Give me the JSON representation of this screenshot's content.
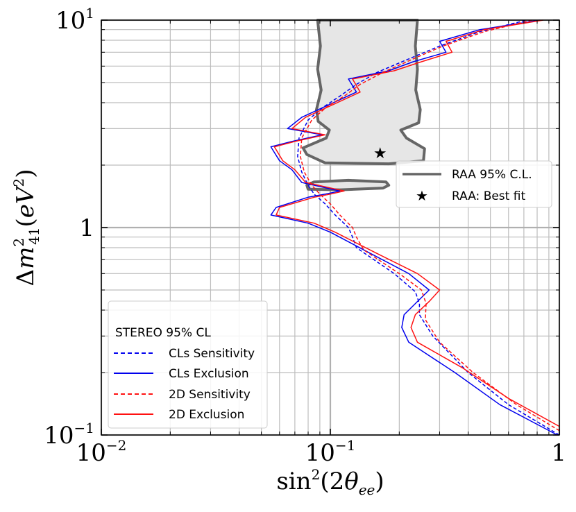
{
  "chart_data": {
    "type": "line",
    "title": "",
    "xscale": "log",
    "yscale": "log",
    "xlim": [
      0.01,
      1
    ],
    "ylim": [
      0.1,
      10
    ],
    "xlabel": {
      "base": "sin",
      "sup": "2",
      "open": "(2",
      "theta": "θ",
      "sub": "ee",
      "close": ")"
    },
    "ylabel": {
      "delta": "Δ",
      "m": "m",
      "sup": "2",
      "sub": "41",
      "open": "(",
      "unit": "eV",
      "unitsup": "2",
      "close": ")"
    },
    "x_ticks": [
      {
        "value": 0.01,
        "base": "10",
        "exp": "−2"
      },
      {
        "value": 0.1,
        "base": "10",
        "exp": "−1"
      },
      {
        "value": 1,
        "base": "1",
        "exp": ""
      }
    ],
    "y_ticks": [
      {
        "value": 0.1,
        "base": "10",
        "exp": "−1"
      },
      {
        "value": 1,
        "base": "1",
        "exp": ""
      },
      {
        "value": 10,
        "base": "10",
        "exp": "1"
      }
    ],
    "grid": true,
    "raa_region": {
      "name": "RAA 95% C.L.",
      "color": "#666666",
      "fill": "#e6e6e6",
      "main": [
        [
          0.088,
          10
        ],
        [
          0.0905,
          7.5
        ],
        [
          0.088,
          5.8
        ],
        [
          0.0912,
          4.6
        ],
        [
          0.087,
          3.7
        ],
        [
          0.0885,
          3.25
        ],
        [
          0.099,
          2.95
        ],
        [
          0.096,
          2.7
        ],
        [
          0.076,
          2.42
        ],
        [
          0.079,
          2.25
        ],
        [
          0.095,
          2.05
        ],
        [
          0.18,
          2.03
        ],
        [
          0.255,
          2.1
        ],
        [
          0.258,
          2.4
        ],
        [
          0.215,
          2.7
        ],
        [
          0.203,
          2.95
        ],
        [
          0.243,
          3.2
        ],
        [
          0.247,
          3.7
        ],
        [
          0.236,
          4.6
        ],
        [
          0.24,
          5.8
        ],
        [
          0.235,
          7.5
        ],
        [
          0.24,
          10
        ]
      ],
      "island": [
        [
          0.079,
          1.6
        ],
        [
          0.085,
          1.66
        ],
        [
          0.12,
          1.69
        ],
        [
          0.175,
          1.66
        ],
        [
          0.18,
          1.6
        ],
        [
          0.17,
          1.55
        ],
        [
          0.11,
          1.52
        ],
        [
          0.08,
          1.53
        ]
      ]
    },
    "best_fit": {
      "name": "RAA: Best fit",
      "x": 0.165,
      "y": 2.3
    },
    "series": [
      {
        "name": "CLs Sensitivity",
        "color": "#0000ee",
        "style": "dashed",
        "points": [
          [
            1.0,
            0.1
          ],
          [
            0.6,
            0.14
          ],
          [
            0.4,
            0.2
          ],
          [
            0.28,
            0.3
          ],
          [
            0.245,
            0.38
          ],
          [
            0.245,
            0.43
          ],
          [
            0.235,
            0.49
          ],
          [
            0.19,
            0.6
          ],
          [
            0.13,
            0.8
          ],
          [
            0.125,
            0.9
          ],
          [
            0.12,
            1.0
          ],
          [
            0.105,
            1.15
          ],
          [
            0.095,
            1.3
          ],
          [
            0.085,
            1.45
          ],
          [
            0.08,
            1.6
          ],
          [
            0.075,
            1.85
          ],
          [
            0.072,
            2.2
          ],
          [
            0.073,
            2.7
          ],
          [
            0.08,
            3.3
          ],
          [
            0.093,
            3.8
          ],
          [
            0.11,
            4.3
          ],
          [
            0.13,
            4.9
          ],
          [
            0.16,
            5.6
          ],
          [
            0.22,
            6.5
          ],
          [
            0.3,
            7.5
          ],
          [
            0.45,
            8.8
          ],
          [
            0.72,
            10
          ]
        ]
      },
      {
        "name": "CLs Exclusion",
        "color": "#0000ee",
        "style": "solid",
        "points": [
          [
            0.98,
            0.1
          ],
          [
            0.55,
            0.14
          ],
          [
            0.35,
            0.2
          ],
          [
            0.22,
            0.28
          ],
          [
            0.205,
            0.33
          ],
          [
            0.21,
            0.38
          ],
          [
            0.24,
            0.44
          ],
          [
            0.27,
            0.5
          ],
          [
            0.22,
            0.6
          ],
          [
            0.15,
            0.75
          ],
          [
            0.1,
            0.95
          ],
          [
            0.08,
            1.05
          ],
          [
            0.055,
            1.15
          ],
          [
            0.058,
            1.25
          ],
          [
            0.08,
            1.4
          ],
          [
            0.095,
            1.45
          ],
          [
            0.11,
            1.5
          ],
          [
            0.075,
            1.65
          ],
          [
            0.068,
            1.9
          ],
          [
            0.06,
            2.1
          ],
          [
            0.055,
            2.45
          ],
          [
            0.068,
            2.6
          ],
          [
            0.092,
            2.8
          ],
          [
            0.065,
            3.0
          ],
          [
            0.075,
            3.4
          ],
          [
            0.13,
            4.5
          ],
          [
            0.12,
            5.2
          ],
          [
            0.18,
            5.7
          ],
          [
            0.23,
            6.3
          ],
          [
            0.32,
            7.0
          ],
          [
            0.3,
            7.9
          ],
          [
            0.45,
            9.0
          ],
          [
            0.82,
            10
          ]
        ]
      },
      {
        "name": "2D Sensitivity",
        "color": "#ff1111",
        "style": "dashed",
        "points": [
          [
            1.0,
            0.105
          ],
          [
            0.65,
            0.14
          ],
          [
            0.42,
            0.2
          ],
          [
            0.3,
            0.28
          ],
          [
            0.26,
            0.36
          ],
          [
            0.262,
            0.43
          ],
          [
            0.25,
            0.5
          ],
          [
            0.2,
            0.6
          ],
          [
            0.14,
            0.78
          ],
          [
            0.13,
            0.9
          ],
          [
            0.125,
            1.0
          ],
          [
            0.11,
            1.15
          ],
          [
            0.1,
            1.3
          ],
          [
            0.09,
            1.45
          ],
          [
            0.083,
            1.6
          ],
          [
            0.077,
            1.85
          ],
          [
            0.074,
            2.2
          ],
          [
            0.075,
            2.7
          ],
          [
            0.083,
            3.3
          ],
          [
            0.096,
            3.8
          ],
          [
            0.115,
            4.3
          ],
          [
            0.135,
            4.9
          ],
          [
            0.17,
            5.6
          ],
          [
            0.23,
            6.5
          ],
          [
            0.31,
            7.5
          ],
          [
            0.47,
            8.8
          ],
          [
            0.76,
            10
          ]
        ]
      },
      {
        "name": "2D Exclusion",
        "color": "#ff1111",
        "style": "solid",
        "points": [
          [
            1.0,
            0.11
          ],
          [
            0.6,
            0.15
          ],
          [
            0.38,
            0.21
          ],
          [
            0.24,
            0.28
          ],
          [
            0.225,
            0.33
          ],
          [
            0.235,
            0.38
          ],
          [
            0.27,
            0.44
          ],
          [
            0.3,
            0.5
          ],
          [
            0.24,
            0.6
          ],
          [
            0.16,
            0.75
          ],
          [
            0.105,
            0.95
          ],
          [
            0.085,
            1.05
          ],
          [
            0.058,
            1.15
          ],
          [
            0.06,
            1.25
          ],
          [
            0.085,
            1.4
          ],
          [
            0.1,
            1.45
          ],
          [
            0.115,
            1.5
          ],
          [
            0.078,
            1.65
          ],
          [
            0.07,
            1.9
          ],
          [
            0.062,
            2.1
          ],
          [
            0.057,
            2.45
          ],
          [
            0.07,
            2.6
          ],
          [
            0.095,
            2.8
          ],
          [
            0.068,
            3.0
          ],
          [
            0.078,
            3.4
          ],
          [
            0.135,
            4.5
          ],
          [
            0.125,
            5.2
          ],
          [
            0.19,
            5.7
          ],
          [
            0.25,
            6.3
          ],
          [
            0.34,
            7.0
          ],
          [
            0.32,
            7.9
          ],
          [
            0.47,
            9.0
          ],
          [
            0.85,
            10
          ]
        ]
      }
    ],
    "legend_raa": {
      "location": "center-right",
      "line_label": "RAA 95% C.L.",
      "star_label": "RAA: Best fit"
    },
    "legend_stereo": {
      "location": "lower-left",
      "title": "STEREO 95% CL",
      "entries": [
        {
          "label": "CLs Sensitivity",
          "color": "#0000ee",
          "style": "dashed"
        },
        {
          "label": "CLs Exclusion",
          "color": "#0000ee",
          "style": "solid"
        },
        {
          "label": "2D Sensitivity",
          "color": "#ff1111",
          "style": "dashed"
        },
        {
          "label": "2D Exclusion",
          "color": "#ff1111",
          "style": "solid"
        }
      ]
    }
  }
}
